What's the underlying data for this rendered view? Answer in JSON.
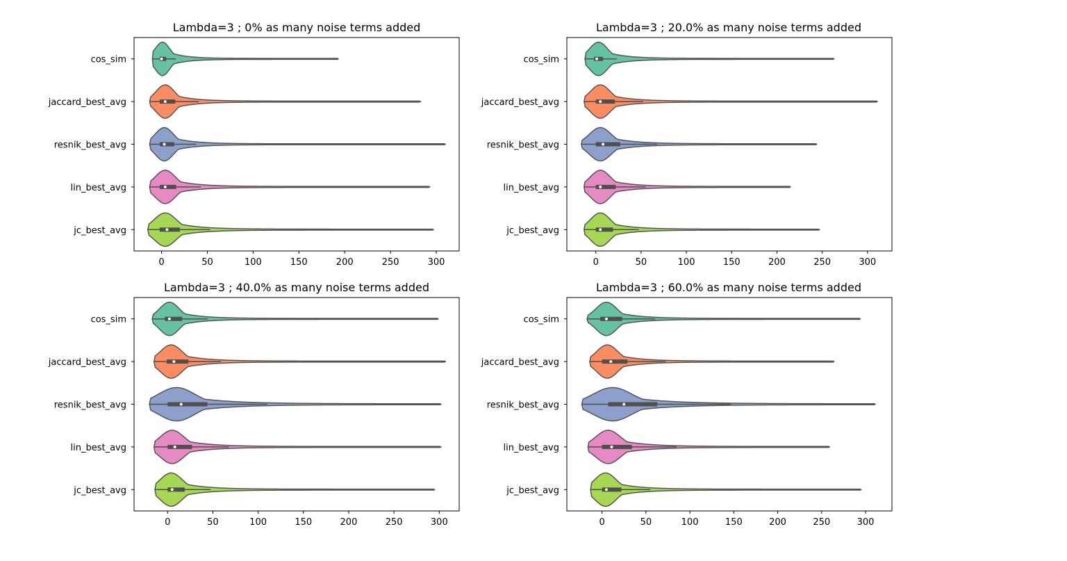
{
  "figure": {
    "background": "#ffffff",
    "violin_outline_color": "#555555",
    "box_color": "#4f4f4f",
    "median_color": "#ffffff"
  },
  "chart_data": [
    {
      "type": "violin",
      "orientation": "horizontal",
      "title": "Lambda=3 ; 0% as many noise terms added",
      "xlabel": "",
      "ylabel": "",
      "xlim": [
        -30,
        325
      ],
      "xticks": [
        0,
        50,
        100,
        150,
        200,
        250,
        300
      ],
      "categories": [
        "cos_sim",
        "jaccard_best_avg",
        "resnik_best_avg",
        "lin_best_avg",
        "jc_best_avg"
      ],
      "colors": [
        "#66c2a5",
        "#fc8d62",
        "#8da0cb",
        "#e78ac3",
        "#a6d854"
      ],
      "series": [
        {
          "label": "cos_sim",
          "min": -10,
          "q1": -2,
          "median": 0,
          "q3": 5,
          "max": 193,
          "peak": 1,
          "spread": 8
        },
        {
          "label": "jaccard_best_avg",
          "min": -13,
          "q1": -2,
          "median": 4,
          "q3": 15,
          "max": 283,
          "peak": 4,
          "spread": 10
        },
        {
          "label": "resnik_best_avg",
          "min": -13,
          "q1": -2,
          "median": 3,
          "q3": 14,
          "max": 310,
          "peak": 3,
          "spread": 10
        },
        {
          "label": "lin_best_avg",
          "min": -13,
          "q1": -2,
          "median": 4,
          "q3": 16,
          "max": 293,
          "peak": 4,
          "spread": 11
        },
        {
          "label": "jc_best_avg",
          "min": -15,
          "q1": -2,
          "median": 6,
          "q3": 20,
          "max": 297,
          "peak": 4,
          "spread": 12
        }
      ]
    },
    {
      "type": "violin",
      "orientation": "horizontal",
      "title": "Lambda=3 ; 20.0% as many noise terms added",
      "xlabel": "",
      "ylabel": "",
      "xlim": [
        -32,
        327
      ],
      "xticks": [
        0,
        50,
        100,
        150,
        200,
        250,
        300
      ],
      "categories": [
        "cos_sim",
        "jaccard_best_avg",
        "resnik_best_avg",
        "lin_best_avg",
        "jc_best_avg"
      ],
      "colors": [
        "#66c2a5",
        "#fc8d62",
        "#8da0cb",
        "#e78ac3",
        "#a6d854"
      ],
      "series": [
        {
          "label": "cos_sim",
          "min": -12,
          "q1": -2,
          "median": 1,
          "q3": 8,
          "max": 263,
          "peak": 3,
          "spread": 10
        },
        {
          "label": "jaccard_best_avg",
          "min": -13,
          "q1": 0,
          "median": 5,
          "q3": 21,
          "max": 311,
          "peak": 5,
          "spread": 11
        },
        {
          "label": "resnik_best_avg",
          "min": -16,
          "q1": 0,
          "median": 8,
          "q3": 27,
          "max": 244,
          "peak": 5,
          "spread": 12
        },
        {
          "label": "lin_best_avg",
          "min": -13,
          "q1": 0,
          "median": 5,
          "q3": 22,
          "max": 215,
          "peak": 5,
          "spread": 11
        },
        {
          "label": "jc_best_avg",
          "min": -13,
          "q1": 0,
          "median": 5,
          "q3": 19,
          "max": 247,
          "peak": 5,
          "spread": 11
        }
      ]
    },
    {
      "type": "violin",
      "orientation": "horizontal",
      "title": "Lambda=3 ; 40.0% as many noise terms added",
      "xlabel": "",
      "ylabel": "",
      "xlim": [
        -37,
        322
      ],
      "xticks": [
        0,
        50,
        100,
        150,
        200,
        250,
        300
      ],
      "categories": [
        "cos_sim",
        "jaccard_best_avg",
        "resnik_best_avg",
        "lin_best_avg",
        "jc_best_avg"
      ],
      "colors": [
        "#66c2a5",
        "#fc8d62",
        "#8da0cb",
        "#e78ac3",
        "#a6d854"
      ],
      "series": [
        {
          "label": "cos_sim",
          "min": -17,
          "q1": -3,
          "median": 2,
          "q3": 16,
          "max": 299,
          "peak": 2,
          "spread": 11
        },
        {
          "label": "jaccard_best_avg",
          "min": -15,
          "q1": -1,
          "median": 7,
          "q3": 23,
          "max": 307,
          "peak": 4,
          "spread": 12
        },
        {
          "label": "resnik_best_avg",
          "min": -20,
          "q1": 0,
          "median": 15,
          "q3": 44,
          "max": 302,
          "peak": 10,
          "spread": 20
        },
        {
          "label": "lin_best_avg",
          "min": -15,
          "q1": 0,
          "median": 8,
          "q3": 27,
          "max": 302,
          "peak": 5,
          "spread": 13
        },
        {
          "label": "jc_best_avg",
          "min": -14,
          "q1": 0,
          "median": 5,
          "q3": 19,
          "max": 295,
          "peak": 4,
          "spread": 12
        }
      ]
    },
    {
      "type": "violin",
      "orientation": "horizontal",
      "title": "Lambda=3 ; 60.0% as many noise terms added",
      "xlabel": "",
      "ylabel": "",
      "xlim": [
        -40,
        330
      ],
      "xticks": [
        0,
        50,
        100,
        150,
        200,
        250,
        300
      ],
      "categories": [
        "cos_sim",
        "jaccard_best_avg",
        "resnik_best_avg",
        "lin_best_avg",
        "jc_best_avg"
      ],
      "colors": [
        "#66c2a5",
        "#fc8d62",
        "#8da0cb",
        "#e78ac3",
        "#a6d854"
      ],
      "series": [
        {
          "label": "cos_sim",
          "min": -17,
          "q1": -2,
          "median": 5,
          "q3": 23,
          "max": 294,
          "peak": 5,
          "spread": 12
        },
        {
          "label": "jaccard_best_avg",
          "min": -14,
          "q1": 0,
          "median": 10,
          "q3": 29,
          "max": 264,
          "peak": 6,
          "spread": 12
        },
        {
          "label": "resnik_best_avg",
          "min": -23,
          "q1": 7,
          "median": 25,
          "q3": 63,
          "max": 311,
          "peak": 12,
          "spread": 22
        },
        {
          "label": "lin_best_avg",
          "min": -16,
          "q1": 0,
          "median": 11,
          "q3": 34,
          "max": 259,
          "peak": 7,
          "spread": 14
        },
        {
          "label": "jc_best_avg",
          "min": -13,
          "q1": 0,
          "median": 5,
          "q3": 22,
          "max": 295,
          "peak": 4,
          "spread": 12
        }
      ]
    }
  ]
}
